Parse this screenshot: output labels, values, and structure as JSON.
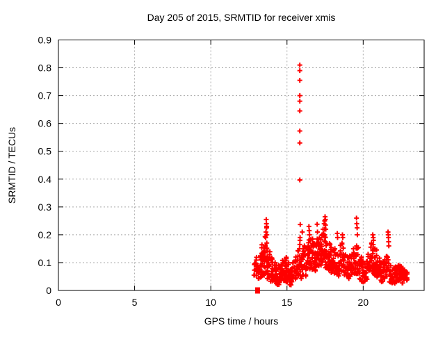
{
  "window": {
    "background": "#ffffff"
  },
  "colors": {
    "marker": "#ff0000",
    "grid": "#a8a8a8",
    "axis": "#000000",
    "text": "#000000",
    "background": "#ffffff"
  },
  "chart_data": {
    "type": "scatter",
    "title": "Day 205 of 2015, SRMTID for receiver xmis",
    "xlabel": "GPS time / hours",
    "ylabel": "SRMTID / TECUs",
    "xlim": [
      0,
      24
    ],
    "ylim": [
      0,
      0.9
    ],
    "xtick_values": [
      0,
      5,
      10,
      15,
      20
    ],
    "xtick_labels": [
      "0",
      "5",
      "10",
      "15",
      "20"
    ],
    "ytick_values": [
      0,
      0.1,
      0.2,
      0.3,
      0.4,
      0.5,
      0.6,
      0.7,
      0.8,
      0.9
    ],
    "ytick_labels": [
      "0",
      "0.1",
      "0.2",
      "0.3",
      "0.4",
      "0.5",
      "0.6",
      "0.7",
      "0.8",
      "0.9"
    ],
    "grid": true,
    "legend": "none",
    "marker": "plus",
    "marker_color": "#ff0000",
    "prng_seed": 2015205,
    "outlier_column": {
      "x": 15.84,
      "values": [
        0.81,
        0.79,
        0.755,
        0.7,
        0.68,
        0.645,
        0.573,
        0.53,
        0.397
      ]
    },
    "zero_marker": {
      "x": 13.07,
      "y": 0,
      "shape": "filled-square"
    },
    "spike_points": [
      [
        13.6,
        0.19
      ],
      [
        13.62,
        0.21
      ],
      [
        13.64,
        0.255
      ],
      [
        13.65,
        0.24
      ],
      [
        13.66,
        0.225
      ],
      [
        13.67,
        0.23
      ],
      [
        13.68,
        0.2
      ],
      [
        15.82,
        0.15
      ],
      [
        15.84,
        0.165
      ],
      [
        15.85,
        0.18
      ],
      [
        15.86,
        0.19
      ],
      [
        15.87,
        0.237
      ],
      [
        16.0,
        0.21
      ],
      [
        16.44,
        0.23
      ],
      [
        16.46,
        0.215
      ],
      [
        16.48,
        0.2
      ],
      [
        16.98,
        0.238
      ],
      [
        17.0,
        0.21
      ],
      [
        17.44,
        0.24
      ],
      [
        17.47,
        0.25
      ],
      [
        17.5,
        0.265
      ],
      [
        17.52,
        0.255
      ],
      [
        17.53,
        0.235
      ],
      [
        17.55,
        0.22
      ],
      [
        18.3,
        0.205
      ],
      [
        18.32,
        0.19
      ],
      [
        18.64,
        0.2
      ],
      [
        18.66,
        0.19
      ],
      [
        19.56,
        0.26
      ],
      [
        19.58,
        0.24
      ],
      [
        19.6,
        0.225
      ],
      [
        19.62,
        0.2
      ],
      [
        20.63,
        0.2
      ],
      [
        20.66,
        0.19
      ],
      [
        20.68,
        0.18
      ],
      [
        21.63,
        0.21
      ],
      [
        21.65,
        0.2
      ],
      [
        21.66,
        0.19
      ],
      [
        21.67,
        0.175
      ],
      [
        21.68,
        0.16
      ]
    ],
    "cluster_bins": [
      [
        12.75,
        12.95,
        0.05,
        0.11,
        5
      ],
      [
        12.95,
        13.1,
        0.04,
        0.12,
        8
      ],
      [
        13.1,
        13.3,
        0.04,
        0.14,
        12
      ],
      [
        13.3,
        13.5,
        0.05,
        0.17,
        14
      ],
      [
        13.5,
        13.7,
        0.06,
        0.205,
        16
      ],
      [
        13.7,
        13.9,
        0.04,
        0.15,
        14
      ],
      [
        13.9,
        14.1,
        0.03,
        0.12,
        14
      ],
      [
        14.1,
        14.3,
        0.025,
        0.1,
        14
      ],
      [
        14.3,
        14.5,
        0.02,
        0.09,
        14
      ],
      [
        14.5,
        14.7,
        0.03,
        0.1,
        14
      ],
      [
        14.7,
        14.9,
        0.035,
        0.11,
        14
      ],
      [
        14.9,
        15.1,
        0.03,
        0.12,
        14
      ],
      [
        15.1,
        15.3,
        0.02,
        0.11,
        14
      ],
      [
        15.3,
        15.5,
        0.03,
        0.1,
        12
      ],
      [
        15.5,
        15.7,
        0.04,
        0.12,
        12
      ],
      [
        15.7,
        15.9,
        0.05,
        0.145,
        12
      ],
      [
        15.9,
        16.1,
        0.04,
        0.15,
        12
      ],
      [
        16.1,
        16.3,
        0.05,
        0.16,
        12
      ],
      [
        16.3,
        16.5,
        0.06,
        0.19,
        14
      ],
      [
        16.5,
        16.7,
        0.07,
        0.185,
        14
      ],
      [
        16.7,
        16.9,
        0.07,
        0.17,
        14
      ],
      [
        16.9,
        17.1,
        0.08,
        0.185,
        14
      ],
      [
        17.1,
        17.3,
        0.09,
        0.2,
        16
      ],
      [
        17.3,
        17.5,
        0.1,
        0.22,
        16
      ],
      [
        17.5,
        17.7,
        0.08,
        0.19,
        14
      ],
      [
        17.7,
        17.9,
        0.07,
        0.17,
        14
      ],
      [
        17.9,
        18.1,
        0.06,
        0.16,
        12
      ],
      [
        18.1,
        18.3,
        0.05,
        0.15,
        12
      ],
      [
        18.3,
        18.5,
        0.05,
        0.14,
        12
      ],
      [
        18.5,
        18.7,
        0.06,
        0.17,
        12
      ],
      [
        18.7,
        18.9,
        0.05,
        0.13,
        12
      ],
      [
        18.9,
        19.1,
        0.04,
        0.12,
        12
      ],
      [
        19.1,
        19.3,
        0.05,
        0.13,
        12
      ],
      [
        19.3,
        19.5,
        0.06,
        0.15,
        12
      ],
      [
        19.5,
        19.7,
        0.06,
        0.16,
        12
      ],
      [
        19.7,
        19.9,
        0.04,
        0.12,
        12
      ],
      [
        19.9,
        20.1,
        0.03,
        0.11,
        12
      ],
      [
        20.1,
        20.3,
        0.04,
        0.11,
        12
      ],
      [
        20.3,
        20.5,
        0.05,
        0.13,
        12
      ],
      [
        20.5,
        20.7,
        0.06,
        0.17,
        14
      ],
      [
        20.7,
        20.9,
        0.05,
        0.15,
        14
      ],
      [
        20.9,
        21.1,
        0.04,
        0.12,
        12
      ],
      [
        21.1,
        21.3,
        0.03,
        0.1,
        12
      ],
      [
        21.3,
        21.5,
        0.04,
        0.11,
        12
      ],
      [
        21.5,
        21.7,
        0.05,
        0.14,
        12
      ],
      [
        21.7,
        21.9,
        0.03,
        0.11,
        12
      ],
      [
        21.9,
        22.1,
        0.025,
        0.09,
        12
      ],
      [
        22.1,
        22.3,
        0.025,
        0.085,
        14
      ],
      [
        22.3,
        22.5,
        0.03,
        0.09,
        14
      ],
      [
        22.5,
        22.7,
        0.025,
        0.08,
        14
      ],
      [
        22.7,
        22.95,
        0.03,
        0.07,
        12
      ]
    ]
  }
}
